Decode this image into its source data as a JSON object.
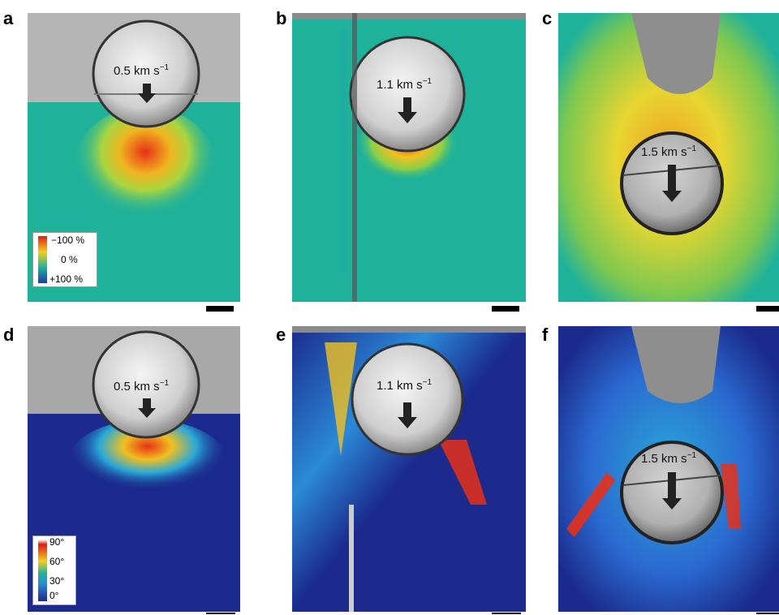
{
  "panels": {
    "a": {
      "label": "a",
      "speed": "0.5 km s",
      "exp": "−1"
    },
    "b": {
      "label": "b",
      "speed": "1.1 km s",
      "exp": "−1"
    },
    "c": {
      "label": "c",
      "speed": "1.5 km s",
      "exp": "−1"
    },
    "d": {
      "label": "d",
      "speed": "0.5 km s",
      "exp": "−1"
    },
    "e": {
      "label": "e",
      "speed": "1.1 km s",
      "exp": "−1"
    },
    "f": {
      "label": "f",
      "speed": "1.5 km s",
      "exp": "−1"
    }
  },
  "legend_strain": {
    "top": "−100 %",
    "mid": "0 %",
    "bottom": "+100 %"
  },
  "legend_angle": {
    "l90": "90°",
    "l60": "60°",
    "l30": "30°",
    "l0": "0°"
  },
  "colors": {
    "strain_field": "#1fb29a",
    "angle_field": "#1b2a8c",
    "hot": "#e8321a",
    "warm": "#f2d51c"
  }
}
